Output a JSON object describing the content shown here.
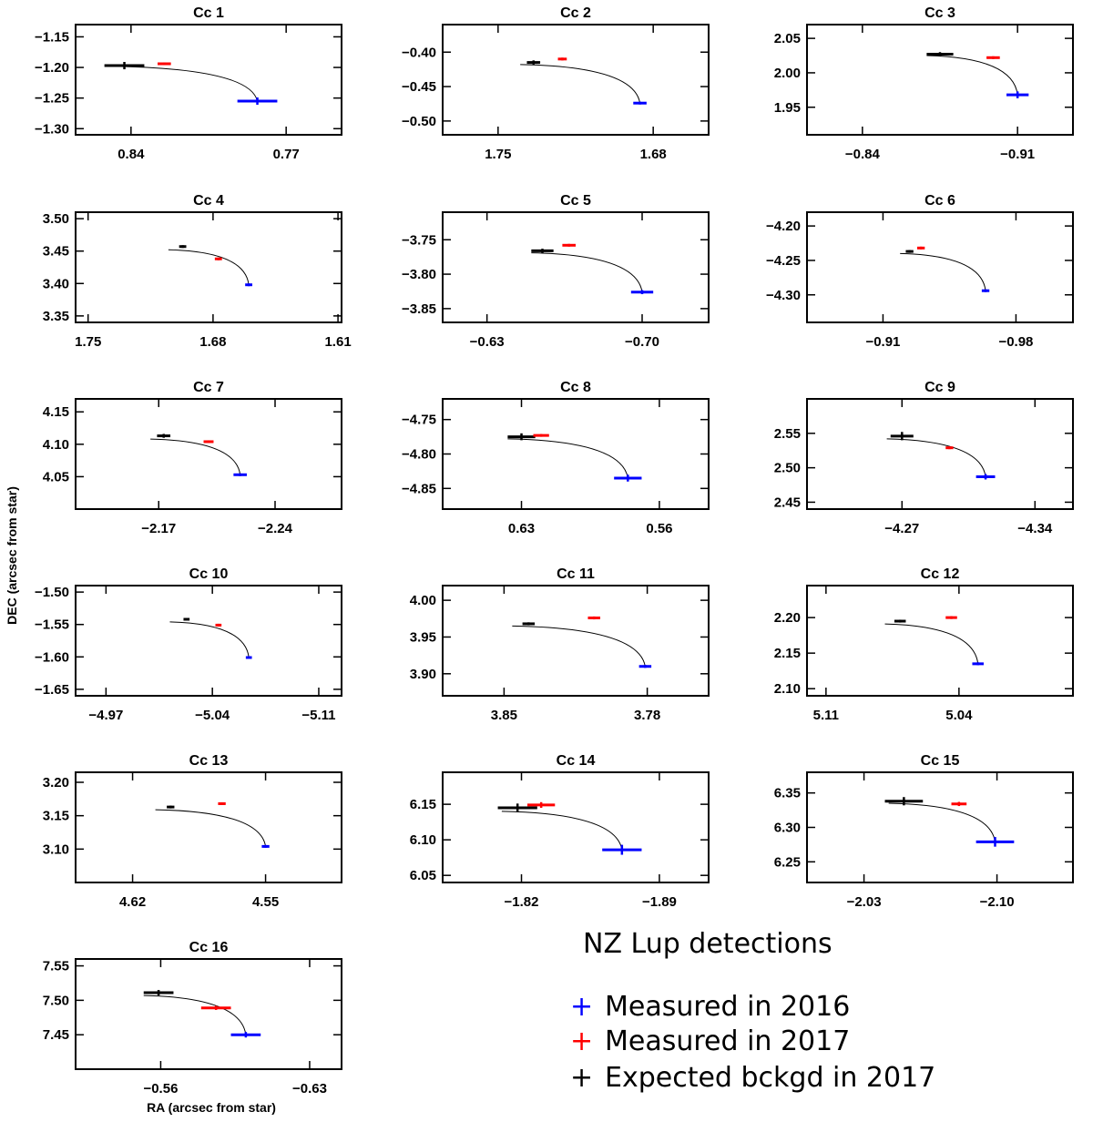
{
  "figure": {
    "xlabel": "RA (arcsec from star)",
    "ylabel": "DEC (arcsec from star)",
    "legend_title": "NZ Lup detections",
    "legend": [
      {
        "marker": "+",
        "label": "Measured in 2016",
        "color": "#0000ff"
      },
      {
        "marker": "+",
        "label": "Measured in 2017",
        "color": "#ff0000"
      },
      {
        "marker": "+",
        "label": "Expected bckgd in 2017",
        "color": "#000000"
      }
    ]
  },
  "chart_data": [
    {
      "type": "scatter",
      "title": "Cc  1",
      "xlim": [
        0.865,
        0.745
      ],
      "ylim": [
        -1.31,
        -1.13
      ],
      "xticks": [
        0.84,
        0.77
      ],
      "xtick_labels": [
        "0.84",
        "0.77"
      ],
      "yticks": [
        -1.15,
        -1.2,
        -1.25,
        -1.3
      ],
      "ytick_labels": [
        "−1.15",
        "−1.20",
        "−1.25",
        "−1.30"
      ],
      "m2016": {
        "x": 0.783,
        "y": -1.255,
        "ex": 0.009,
        "ey": 0.006
      },
      "m2017": {
        "x": 0.825,
        "y": -1.194,
        "ex": 0.003,
        "ey": 0.002
      },
      "bg2017": {
        "x": 0.843,
        "y": -1.197,
        "ex": 0.009,
        "ey": 0.006
      },
      "track_start": {
        "x": 0.85,
        "y": -1.198
      }
    },
    {
      "type": "scatter",
      "title": "Cc  2",
      "xlim": [
        1.775,
        1.655
      ],
      "ylim": [
        -0.52,
        -0.36
      ],
      "xticks": [
        1.75,
        1.68
      ],
      "xtick_labels": [
        "1.75",
        "1.68"
      ],
      "yticks": [
        -0.4,
        -0.45,
        -0.5
      ],
      "ytick_labels": [
        "−0.40",
        "−0.45",
        "−0.50"
      ],
      "m2016": {
        "x": 1.686,
        "y": -0.474,
        "ex": 0.003,
        "ey": 0.002
      },
      "m2017": {
        "x": 1.721,
        "y": -0.41,
        "ex": 0.002,
        "ey": 0.002
      },
      "bg2017": {
        "x": 1.734,
        "y": -0.415,
        "ex": 0.003,
        "ey": 0.003
      },
      "track_start": {
        "x": 1.74,
        "y": -0.418
      }
    },
    {
      "type": "scatter",
      "title": "Cc  3",
      "xlim": [
        -0.815,
        -0.935
      ],
      "ylim": [
        1.91,
        2.07
      ],
      "xticks": [
        -0.84,
        -0.91
      ],
      "xtick_labels": [
        "−0.84",
        "−0.91"
      ],
      "yticks": [
        2.05,
        2.0,
        1.95
      ],
      "ytick_labels": [
        "2.05",
        "2.00",
        "1.95"
      ],
      "m2016": {
        "x": -0.91,
        "y": 1.968,
        "ex": 0.005,
        "ey": 0.005
      },
      "m2017": {
        "x": -0.899,
        "y": 2.022,
        "ex": 0.003,
        "ey": 0.002
      },
      "bg2017": {
        "x": -0.875,
        "y": 2.027,
        "ex": 0.006,
        "ey": 0.003
      },
      "track_start": {
        "x": -0.869,
        "y": 2.025
      }
    },
    {
      "type": "scatter",
      "title": "Cc  4",
      "xlim": [
        1.757,
        1.608
      ],
      "ylim": [
        3.34,
        3.51
      ],
      "xticks": [
        1.75,
        1.68,
        1.61
      ],
      "xtick_labels": [
        "1.75",
        "1.68",
        "1.61"
      ],
      "yticks": [
        3.5,
        3.45,
        3.4,
        3.35
      ],
      "ytick_labels": [
        "3.50",
        "3.45",
        "3.40",
        "3.35"
      ],
      "m2016": {
        "x": 1.66,
        "y": 3.398,
        "ex": 0.002,
        "ey": 0.002
      },
      "m2017": {
        "x": 1.677,
        "y": 3.438,
        "ex": 0.002,
        "ey": 0.002
      },
      "bg2017": {
        "x": 1.697,
        "y": 3.457,
        "ex": 0.002,
        "ey": 0.002
      },
      "track_start": {
        "x": 1.705,
        "y": 3.452
      }
    },
    {
      "type": "scatter",
      "title": "Cc  5",
      "xlim": [
        -0.61,
        -0.73
      ],
      "ylim": [
        -3.87,
        -3.71
      ],
      "xticks": [
        -0.63,
        -0.7
      ],
      "xtick_labels": [
        "−0.63",
        "−0.70"
      ],
      "yticks": [
        -3.75,
        -3.8,
        -3.85
      ],
      "ytick_labels": [
        "−3.75",
        "−3.80",
        "−3.85"
      ],
      "m2016": {
        "x": -0.7,
        "y": -3.826,
        "ex": 0.005,
        "ey": 0.003
      },
      "m2017": {
        "x": -0.667,
        "y": -3.758,
        "ex": 0.003,
        "ey": 0.002
      },
      "bg2017": {
        "x": -0.655,
        "y": -3.766,
        "ex": 0.005,
        "ey": 0.003
      },
      "track_start": {
        "x": -0.65,
        "y": -3.769
      }
    },
    {
      "type": "scatter",
      "title": "Cc  6",
      "xlim": [
        -0.87,
        -1.01
      ],
      "ylim": [
        -4.34,
        -4.18
      ],
      "xticks": [
        -0.91,
        -0.98
      ],
      "xtick_labels": [
        "−0.91",
        "−0.98"
      ],
      "yticks": [
        -4.2,
        -4.25,
        -4.3
      ],
      "ytick_labels": [
        "−4.20",
        "−4.25",
        "−4.30"
      ],
      "m2016": {
        "x": -0.964,
        "y": -4.294,
        "ex": 0.002,
        "ey": 0.002
      },
      "m2017": {
        "x": -0.93,
        "y": -4.232,
        "ex": 0.002,
        "ey": 0.002
      },
      "bg2017": {
        "x": -0.924,
        "y": -4.237,
        "ex": 0.002,
        "ey": 0.002
      },
      "track_start": {
        "x": -0.919,
        "y": -4.24
      }
    },
    {
      "type": "scatter",
      "title": "Cc  7",
      "xlim": [
        -2.12,
        -2.28
      ],
      "ylim": [
        4.0,
        4.17
      ],
      "xticks": [
        -2.17,
        -2.24
      ],
      "xtick_labels": [
        "−2.17",
        "−2.24"
      ],
      "yticks": [
        4.15,
        4.1,
        4.05
      ],
      "ytick_labels": [
        "4.15",
        "4.10",
        "4.05"
      ],
      "m2016": {
        "x": -2.219,
        "y": 4.053,
        "ex": 0.004,
        "ey": 0.002
      },
      "m2017": {
        "x": -2.2,
        "y": 4.104,
        "ex": 0.003,
        "ey": 0.002
      },
      "bg2017": {
        "x": -2.173,
        "y": 4.113,
        "ex": 0.004,
        "ey": 0.003
      },
      "track_start": {
        "x": -2.165,
        "y": 4.108
      }
    },
    {
      "type": "scatter",
      "title": "Cc  8",
      "xlim": [
        0.67,
        0.535
      ],
      "ylim": [
        -4.88,
        -4.72
      ],
      "xticks": [
        0.63,
        0.56
      ],
      "xtick_labels": [
        "0.63",
        "0.56"
      ],
      "yticks": [
        -4.75,
        -4.8,
        -4.85
      ],
      "ytick_labels": [
        "−4.75",
        "−4.80",
        "−4.85"
      ],
      "m2016": {
        "x": 0.576,
        "y": -4.835,
        "ex": 0.007,
        "ey": 0.005
      },
      "m2017": {
        "x": 0.62,
        "y": -4.773,
        "ex": 0.004,
        "ey": 0.002
      },
      "bg2017": {
        "x": 0.63,
        "y": -4.775,
        "ex": 0.007,
        "ey": 0.005
      },
      "track_start": {
        "x": 0.637,
        "y": -4.778
      }
    },
    {
      "type": "scatter",
      "title": "Cc  9",
      "xlim": [
        -4.22,
        -4.36
      ],
      "ylim": [
        2.44,
        2.6
      ],
      "xticks": [
        -4.27,
        -4.34
      ],
      "xtick_labels": [
        "−4.27",
        "−4.34"
      ],
      "yticks": [
        2.55,
        2.5,
        2.45
      ],
      "ytick_labels": [
        "2.55",
        "2.50",
        "2.45"
      ],
      "m2016": {
        "x": -4.314,
        "y": 2.487,
        "ex": 0.005,
        "ey": 0.004
      },
      "m2017": {
        "x": -4.295,
        "y": 2.529,
        "ex": 0.002,
        "ey": 0.002
      },
      "bg2017": {
        "x": -4.27,
        "y": 2.546,
        "ex": 0.006,
        "ey": 0.006
      },
      "track_start": {
        "x": -4.262,
        "y": 2.542
      }
    },
    {
      "type": "scatter",
      "title": "Cc 10",
      "xlim": [
        -4.95,
        -5.125
      ],
      "ylim": [
        -1.66,
        -1.49
      ],
      "xticks": [
        -4.97,
        -5.04,
        -5.11
      ],
      "xtick_labels": [
        "−4.97",
        "−5.04",
        "−5.11"
      ],
      "yticks": [
        -1.5,
        -1.55,
        -1.6,
        -1.65
      ],
      "ytick_labels": [
        "−1.50",
        "−1.55",
        "−1.60",
        "−1.65"
      ],
      "m2016": {
        "x": -5.064,
        "y": -1.601,
        "ex": 0.002,
        "ey": 0.002
      },
      "m2017": {
        "x": -5.044,
        "y": -1.551,
        "ex": 0.002,
        "ey": 0.002
      },
      "bg2017": {
        "x": -5.023,
        "y": -1.542,
        "ex": 0.002,
        "ey": 0.002
      },
      "track_start": {
        "x": -5.012,
        "y": -1.546
      }
    },
    {
      "type": "scatter",
      "title": "Cc 11",
      "xlim": [
        3.88,
        3.75
      ],
      "ylim": [
        3.87,
        4.02
      ],
      "xticks": [
        3.85,
        3.78
      ],
      "xtick_labels": [
        "3.85",
        "3.78"
      ],
      "yticks": [
        4.0,
        3.95,
        3.9
      ],
      "ytick_labels": [
        "4.00",
        "3.95",
        "3.90"
      ],
      "m2016": {
        "x": 3.781,
        "y": 3.91,
        "ex": 0.003,
        "ey": 0.002
      },
      "m2017": {
        "x": 3.806,
        "y": 3.976,
        "ex": 0.003,
        "ey": 0.002
      },
      "bg2017": {
        "x": 3.838,
        "y": 3.968,
        "ex": 0.003,
        "ey": 0.002
      },
      "track_start": {
        "x": 3.846,
        "y": 3.965
      }
    },
    {
      "type": "scatter",
      "title": "Cc 12",
      "xlim": [
        5.12,
        4.98
      ],
      "ylim": [
        2.09,
        2.245
      ],
      "xticks": [
        5.11,
        5.04
      ],
      "xtick_labels": [
        "5.11",
        "5.04"
      ],
      "yticks": [
        2.2,
        2.15,
        2.1
      ],
      "ytick_labels": [
        "2.20",
        "2.15",
        "2.10"
      ],
      "m2016": {
        "x": 5.03,
        "y": 2.135,
        "ex": 0.003,
        "ey": 0.002
      },
      "m2017": {
        "x": 5.044,
        "y": 2.2,
        "ex": 0.003,
        "ey": 0.002
      },
      "bg2017": {
        "x": 5.071,
        "y": 2.195,
        "ex": 0.003,
        "ey": 0.002
      },
      "track_start": {
        "x": 5.079,
        "y": 2.191
      }
    },
    {
      "type": "scatter",
      "title": "Cc 13",
      "xlim": [
        4.65,
        4.51
      ],
      "ylim": [
        3.05,
        3.215
      ],
      "xticks": [
        4.62,
        4.55
      ],
      "xtick_labels": [
        "4.62",
        "4.55"
      ],
      "yticks": [
        3.2,
        3.15,
        3.1
      ],
      "ytick_labels": [
        "3.20",
        "3.15",
        "3.10"
      ],
      "m2016": {
        "x": 4.55,
        "y": 3.104,
        "ex": 0.002,
        "ey": 0.002
      },
      "m2017": {
        "x": 4.573,
        "y": 3.168,
        "ex": 0.002,
        "ey": 0.002
      },
      "bg2017": {
        "x": 4.6,
        "y": 3.163,
        "ex": 0.002,
        "ey": 0.002
      },
      "track_start": {
        "x": 4.608,
        "y": 3.159
      }
    },
    {
      "type": "scatter",
      "title": "Cc 14",
      "xlim": [
        -1.78,
        -1.915
      ],
      "ylim": [
        6.04,
        6.195
      ],
      "xticks": [
        -1.82,
        -1.89
      ],
      "xtick_labels": [
        "−1.82",
        "−1.89"
      ],
      "yticks": [
        6.15,
        6.1,
        6.05
      ],
      "ytick_labels": [
        "6.15",
        "6.10",
        "6.05"
      ],
      "m2016": {
        "x": -1.871,
        "y": 6.086,
        "ex": 0.01,
        "ey": 0.007
      },
      "m2017": {
        "x": -1.83,
        "y": 6.149,
        "ex": 0.007,
        "ey": 0.004
      },
      "bg2017": {
        "x": -1.818,
        "y": 6.145,
        "ex": 0.01,
        "ey": 0.006
      },
      "track_start": {
        "x": -1.81,
        "y": 6.14
      }
    },
    {
      "type": "scatter",
      "title": "Cc 15",
      "xlim": [
        -2.0,
        -2.14
      ],
      "ylim": [
        6.22,
        6.38
      ],
      "xticks": [
        -2.03,
        -2.1
      ],
      "xtick_labels": [
        "−2.03",
        "−2.10"
      ],
      "yticks": [
        6.35,
        6.3,
        6.25
      ],
      "ytick_labels": [
        "6.35",
        "6.30",
        "6.25"
      ],
      "m2016": {
        "x": -2.099,
        "y": 6.279,
        "ex": 0.01,
        "ey": 0.007
      },
      "m2017": {
        "x": -2.08,
        "y": 6.334,
        "ex": 0.004,
        "ey": 0.003
      },
      "bg2017": {
        "x": -2.051,
        "y": 6.338,
        "ex": 0.01,
        "ey": 0.006
      },
      "track_start": {
        "x": -2.043,
        "y": 6.335
      }
    },
    {
      "type": "scatter",
      "title": "Cc 16",
      "xlim": [
        -0.52,
        -0.645
      ],
      "ylim": [
        7.4,
        7.56
      ],
      "xticks": [
        -0.56,
        -0.63
      ],
      "xtick_labels": [
        "−0.56",
        "−0.63"
      ],
      "yticks": [
        7.55,
        7.5,
        7.45
      ],
      "ytick_labels": [
        "7.55",
        "7.50",
        "7.45"
      ],
      "m2016": {
        "x": -0.6,
        "y": 7.45,
        "ex": 0.007,
        "ey": 0.004
      },
      "m2017": {
        "x": -0.586,
        "y": 7.489,
        "ex": 0.007,
        "ey": 0.003
      },
      "bg2017": {
        "x": -0.559,
        "y": 7.511,
        "ex": 0.007,
        "ey": 0.004
      },
      "track_start": {
        "x": -0.552,
        "y": 7.507
      }
    }
  ]
}
